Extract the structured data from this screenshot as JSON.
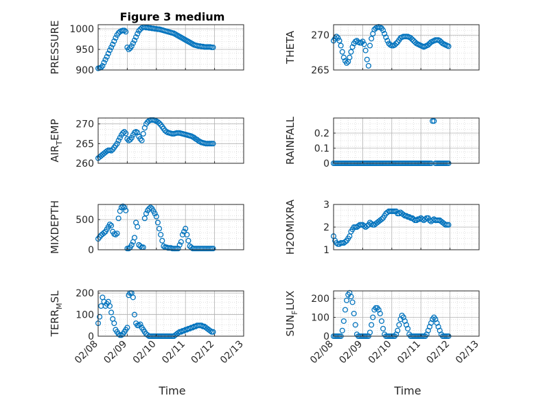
{
  "title": "Figure 3 medium",
  "colors": {
    "marker": "#0072BD",
    "axis": "#262626",
    "grid": "#b0b0b0",
    "minor_grid": "#d6d6d6"
  },
  "x_ticks": [
    "02/08",
    "02/09",
    "02/10",
    "02/11",
    "02/12",
    "02/13"
  ],
  "x_label": "Time",
  "chart_data": [
    {
      "type": "scatter",
      "ylabel": "PRESSURE",
      "ylim": [
        900,
        1010
      ],
      "yticks": [
        900,
        950,
        1000
      ],
      "xlim": [
        0,
        5
      ],
      "show_xticks": false,
      "x": [
        0.0,
        0.05,
        0.1,
        0.15,
        0.2,
        0.25,
        0.3,
        0.35,
        0.4,
        0.45,
        0.5,
        0.55,
        0.6,
        0.65,
        0.7,
        0.75,
        0.8,
        0.85,
        0.9,
        0.95,
        1.0,
        1.05,
        1.1,
        1.15,
        1.2,
        1.25,
        1.3,
        1.35,
        1.4,
        1.45,
        1.5,
        1.55,
        1.6,
        1.65,
        1.7,
        1.75,
        1.8,
        1.85,
        1.9,
        1.95,
        2.0,
        2.05,
        2.1,
        2.15,
        2.2,
        2.25,
        2.3,
        2.35,
        2.4,
        2.45,
        2.5,
        2.55,
        2.6,
        2.65,
        2.7,
        2.75,
        2.8,
        2.85,
        2.9,
        2.95,
        3.0,
        3.05,
        3.1,
        3.15,
        3.2,
        3.25,
        3.3,
        3.35,
        3.4,
        3.45,
        3.5,
        3.55,
        3.6,
        3.65,
        3.7,
        3.75,
        3.8,
        3.85,
        3.9,
        3.95
      ],
      "y": [
        904,
        905,
        906,
        910,
        918,
        925,
        932,
        940,
        948,
        955,
        962,
        970,
        978,
        985,
        990,
        993,
        995,
        996,
        996,
        993,
        955,
        950,
        953,
        958,
        965,
        972,
        980,
        988,
        995,
        999,
        1002,
        1004,
        1004,
        1003,
        1003,
        1002,
        1002,
        1001,
        1001,
        1000,
        1000,
        999,
        999,
        998,
        997,
        996,
        995,
        994,
        993,
        992,
        991,
        990,
        989,
        987,
        985,
        983,
        981,
        979,
        977,
        975,
        973,
        971,
        969,
        967,
        965,
        963,
        961,
        960,
        959,
        958,
        958,
        957,
        957,
        956,
        956,
        956,
        956,
        956,
        955,
        955
      ]
    },
    {
      "type": "scatter",
      "ylabel": "THETA",
      "ylim": [
        265,
        271.5
      ],
      "yticks": [
        265,
        270
      ],
      "xlim": [
        0,
        5
      ],
      "show_xticks": false,
      "x": [
        0.0,
        0.05,
        0.1,
        0.15,
        0.2,
        0.25,
        0.3,
        0.35,
        0.4,
        0.45,
        0.5,
        0.55,
        0.6,
        0.65,
        0.7,
        0.75,
        0.8,
        0.85,
        0.9,
        0.95,
        1.0,
        1.05,
        1.1,
        1.15,
        1.2,
        1.25,
        1.3,
        1.35,
        1.4,
        1.45,
        1.5,
        1.55,
        1.6,
        1.65,
        1.7,
        1.75,
        1.8,
        1.85,
        1.9,
        1.95,
        2.0,
        2.05,
        2.1,
        2.15,
        2.2,
        2.25,
        2.3,
        2.35,
        2.4,
        2.45,
        2.5,
        2.55,
        2.6,
        2.65,
        2.7,
        2.75,
        2.8,
        2.85,
        2.9,
        2.95,
        3.0,
        3.05,
        3.1,
        3.15,
        3.2,
        3.25,
        3.3,
        3.35,
        3.4,
        3.45,
        3.5,
        3.55,
        3.6,
        3.65,
        3.7,
        3.75,
        3.8,
        3.85,
        3.9,
        3.95
      ],
      "y": [
        269.2,
        269.5,
        269.8,
        269.6,
        269.2,
        268.5,
        267.6,
        266.8,
        266.3,
        266.0,
        266.2,
        266.8,
        267.6,
        268.3,
        268.8,
        269.1,
        269.2,
        269.0,
        268.9,
        268.9,
        269.1,
        268.7,
        267.8,
        266.5,
        265.6,
        268.5,
        269.5,
        270.2,
        270.8,
        271.0,
        271.1,
        271.2,
        271.1,
        271.0,
        270.7,
        270.2,
        269.7,
        269.2,
        268.8,
        268.6,
        268.5,
        268.5,
        268.6,
        268.8,
        269.0,
        269.3,
        269.6,
        269.7,
        269.8,
        269.8,
        269.8,
        269.8,
        269.7,
        269.6,
        269.4,
        269.2,
        269.0,
        268.8,
        268.7,
        268.6,
        268.5,
        268.4,
        268.3,
        268.4,
        268.5,
        268.6,
        268.8,
        269.0,
        269.1,
        269.2,
        269.3,
        269.3,
        269.3,
        269.2,
        269.0,
        268.8,
        268.7,
        268.6,
        268.5,
        268.4
      ]
    },
    {
      "type": "scatter",
      "ylabel": "AIR_TEMP",
      "ylim": [
        260,
        271.5
      ],
      "yticks": [
        260,
        265,
        270
      ],
      "xlim": [
        0,
        5
      ],
      "show_xticks": false,
      "x": [
        0.0,
        0.05,
        0.1,
        0.15,
        0.2,
        0.25,
        0.3,
        0.35,
        0.4,
        0.45,
        0.5,
        0.55,
        0.6,
        0.65,
        0.7,
        0.75,
        0.8,
        0.85,
        0.9,
        0.95,
        1.0,
        1.05,
        1.1,
        1.15,
        1.2,
        1.25,
        1.3,
        1.35,
        1.4,
        1.45,
        1.5,
        1.55,
        1.6,
        1.65,
        1.7,
        1.75,
        1.8,
        1.85,
        1.9,
        1.95,
        2.0,
        2.05,
        2.1,
        2.15,
        2.2,
        2.25,
        2.3,
        2.35,
        2.4,
        2.45,
        2.5,
        2.55,
        2.6,
        2.65,
        2.7,
        2.75,
        2.8,
        2.85,
        2.9,
        2.95,
        3.0,
        3.05,
        3.1,
        3.15,
        3.2,
        3.25,
        3.3,
        3.35,
        3.4,
        3.45,
        3.5,
        3.55,
        3.6,
        3.65,
        3.7,
        3.75,
        3.8,
        3.85,
        3.9,
        3.95
      ],
      "y": [
        261.3,
        261.6,
        261.9,
        262.2,
        262.5,
        262.8,
        263.1,
        263.3,
        263.3,
        263.2,
        263.5,
        264.0,
        264.5,
        265.0,
        265.8,
        266.5,
        267.2,
        267.7,
        268.0,
        267.6,
        266.2,
        265.8,
        266.0,
        266.5,
        267.2,
        267.8,
        268.0,
        267.8,
        266.8,
        266.2,
        265.8,
        267.5,
        269.0,
        270.0,
        270.5,
        270.8,
        271.0,
        271.0,
        271.0,
        270.9,
        270.7,
        270.5,
        270.2,
        269.8,
        269.3,
        268.8,
        268.3,
        268.0,
        267.8,
        267.7,
        267.6,
        267.5,
        267.5,
        267.6,
        267.7,
        267.7,
        267.7,
        267.6,
        267.5,
        267.4,
        267.3,
        267.2,
        267.1,
        267.0,
        266.9,
        266.7,
        266.5,
        266.2,
        266.0,
        265.7,
        265.5,
        265.3,
        265.2,
        265.1,
        265.0,
        265.0,
        265.0,
        265.0,
        265.0,
        265.0
      ]
    },
    {
      "type": "scatter",
      "ylabel": "RAINFALL",
      "ylim": [
        0,
        0.3
      ],
      "yticks": [
        0,
        0.1,
        0.2
      ],
      "xlim": [
        0,
        5
      ],
      "show_xticks": false,
      "x": [
        0.0,
        0.05,
        0.1,
        0.15,
        0.2,
        0.25,
        0.3,
        0.35,
        0.4,
        0.45,
        0.5,
        0.55,
        0.6,
        0.65,
        0.7,
        0.75,
        0.8,
        0.85,
        0.9,
        0.95,
        1.0,
        1.05,
        1.1,
        1.15,
        1.2,
        1.25,
        1.3,
        1.35,
        1.4,
        1.45,
        1.5,
        1.55,
        1.6,
        1.65,
        1.7,
        1.75,
        1.8,
        1.85,
        1.9,
        1.95,
        2.0,
        2.05,
        2.1,
        2.15,
        2.2,
        2.25,
        2.3,
        2.35,
        2.4,
        2.45,
        2.5,
        2.55,
        2.6,
        2.65,
        2.7,
        2.75,
        2.8,
        2.85,
        2.9,
        2.95,
        3.0,
        3.05,
        3.1,
        3.15,
        3.2,
        3.25,
        3.3,
        3.35,
        3.4,
        3.45,
        3.5,
        3.55,
        3.6,
        3.65,
        3.7,
        3.75,
        3.8,
        3.85,
        3.9,
        3.95
      ],
      "y": [
        0,
        0,
        0,
        0,
        0,
        0,
        0,
        0,
        0,
        0,
        0,
        0,
        0,
        0,
        0,
        0,
        0,
        0,
        0,
        0,
        0,
        0,
        0,
        0,
        0,
        0,
        0,
        0,
        0,
        0,
        0,
        0,
        0,
        0,
        0,
        0,
        0,
        0,
        0,
        0,
        0,
        0,
        0,
        0,
        0,
        0,
        0,
        0,
        0,
        0,
        0,
        0,
        0,
        0,
        0,
        0,
        0,
        0,
        0,
        0,
        0,
        0,
        0,
        0,
        0,
        0,
        0,
        0,
        0.28,
        0.28,
        0,
        0,
        0,
        0,
        0,
        0,
        0,
        0,
        0,
        0
      ]
    },
    {
      "type": "scatter",
      "ylabel": "MIXDEPTH",
      "ylim": [
        0,
        750
      ],
      "yticks": [
        0,
        500
      ],
      "xlim": [
        0,
        5
      ],
      "show_xticks": false,
      "x": [
        0.0,
        0.05,
        0.1,
        0.15,
        0.2,
        0.25,
        0.3,
        0.35,
        0.4,
        0.45,
        0.5,
        0.55,
        0.6,
        0.65,
        0.7,
        0.75,
        0.8,
        0.85,
        0.9,
        0.95,
        1.0,
        1.05,
        1.1,
        1.15,
        1.2,
        1.25,
        1.3,
        1.35,
        1.4,
        1.45,
        1.5,
        1.55,
        1.6,
        1.65,
        1.7,
        1.75,
        1.8,
        1.85,
        1.9,
        1.95,
        2.0,
        2.05,
        2.1,
        2.15,
        2.2,
        2.25,
        2.3,
        2.35,
        2.4,
        2.45,
        2.5,
        2.55,
        2.6,
        2.65,
        2.7,
        2.75,
        2.8,
        2.85,
        2.9,
        2.95,
        3.0,
        3.05,
        3.1,
        3.15,
        3.2,
        3.25,
        3.3,
        3.35,
        3.4,
        3.45,
        3.5,
        3.55,
        3.6,
        3.65,
        3.7,
        3.75,
        3.8,
        3.85,
        3.9,
        3.95
      ],
      "y": [
        180,
        210,
        240,
        260,
        280,
        300,
        340,
        380,
        420,
        400,
        300,
        260,
        250,
        270,
        520,
        640,
        700,
        720,
        700,
        650,
        20,
        20,
        40,
        80,
        130,
        200,
        450,
        380,
        80,
        60,
        40,
        40,
        520,
        600,
        650,
        680,
        700,
        680,
        640,
        600,
        550,
        450,
        350,
        250,
        150,
        60,
        40,
        40,
        30,
        30,
        30,
        20,
        20,
        20,
        20,
        20,
        80,
        130,
        250,
        300,
        350,
        250,
        150,
        60,
        40,
        20,
        20,
        20,
        20,
        20,
        20,
        20,
        20,
        20,
        20,
        20,
        20,
        20,
        20,
        20
      ]
    },
    {
      "type": "scatter",
      "ylabel": "H2OMIXRA",
      "ylim": [
        1,
        3
      ],
      "yticks": [
        1,
        2,
        3
      ],
      "xlim": [
        0,
        5
      ],
      "show_xticks": false,
      "x": [
        0.0,
        0.05,
        0.1,
        0.15,
        0.2,
        0.25,
        0.3,
        0.35,
        0.4,
        0.45,
        0.5,
        0.55,
        0.6,
        0.65,
        0.7,
        0.75,
        0.8,
        0.85,
        0.9,
        0.95,
        1.0,
        1.05,
        1.1,
        1.15,
        1.2,
        1.25,
        1.3,
        1.35,
        1.4,
        1.45,
        1.5,
        1.55,
        1.6,
        1.65,
        1.7,
        1.75,
        1.8,
        1.85,
        1.9,
        1.95,
        2.0,
        2.05,
        2.1,
        2.15,
        2.2,
        2.25,
        2.3,
        2.35,
        2.4,
        2.45,
        2.5,
        2.55,
        2.6,
        2.65,
        2.7,
        2.75,
        2.8,
        2.85,
        2.9,
        2.95,
        3.0,
        3.05,
        3.1,
        3.15,
        3.2,
        3.25,
        3.3,
        3.35,
        3.4,
        3.45,
        3.5,
        3.55,
        3.6,
        3.65,
        3.7,
        3.75,
        3.8,
        3.85,
        3.9,
        3.95
      ],
      "y": [
        1.6,
        1.4,
        1.3,
        1.25,
        1.25,
        1.3,
        1.3,
        1.3,
        1.35,
        1.4,
        1.5,
        1.6,
        1.8,
        1.9,
        2.0,
        2.0,
        2.0,
        2.05,
        2.1,
        2.1,
        2.1,
        2.05,
        2.0,
        2.05,
        2.1,
        2.2,
        2.15,
        2.1,
        2.1,
        2.15,
        2.2,
        2.25,
        2.3,
        2.35,
        2.4,
        2.5,
        2.6,
        2.65,
        2.7,
        2.7,
        2.7,
        2.7,
        2.7,
        2.7,
        2.6,
        2.6,
        2.65,
        2.6,
        2.55,
        2.5,
        2.5,
        2.45,
        2.45,
        2.4,
        2.4,
        2.35,
        2.3,
        2.3,
        2.35,
        2.35,
        2.4,
        2.35,
        2.3,
        2.35,
        2.4,
        2.4,
        2.3,
        2.25,
        2.3,
        2.35,
        2.3,
        2.3,
        2.3,
        2.3,
        2.25,
        2.2,
        2.15,
        2.1,
        2.1,
        2.1
      ]
    },
    {
      "type": "scatter",
      "ylabel": "TERR_MSL",
      "ylim": [
        0,
        210
      ],
      "yticks": [
        0,
        100,
        200
      ],
      "xlim": [
        0,
        5
      ],
      "show_xticks": true,
      "x": [
        0.0,
        0.05,
        0.1,
        0.15,
        0.2,
        0.25,
        0.3,
        0.35,
        0.4,
        0.45,
        0.5,
        0.55,
        0.6,
        0.65,
        0.7,
        0.75,
        0.8,
        0.85,
        0.9,
        0.95,
        1.0,
        1.05,
        1.1,
        1.15,
        1.2,
        1.25,
        1.3,
        1.35,
        1.4,
        1.45,
        1.5,
        1.55,
        1.6,
        1.65,
        1.7,
        1.75,
        1.8,
        1.85,
        1.9,
        1.95,
        2.0,
        2.05,
        2.1,
        2.15,
        2.2,
        2.25,
        2.3,
        2.35,
        2.4,
        2.45,
        2.5,
        2.55,
        2.6,
        2.65,
        2.7,
        2.75,
        2.8,
        2.85,
        2.9,
        2.95,
        3.0,
        3.05,
        3.1,
        3.15,
        3.2,
        3.25,
        3.3,
        3.35,
        3.4,
        3.45,
        3.5,
        3.55,
        3.6,
        3.65,
        3.7,
        3.75,
        3.8,
        3.85,
        3.9,
        3.95
      ],
      "y": [
        60,
        90,
        140,
        180,
        160,
        140,
        150,
        160,
        140,
        110,
        80,
        60,
        30,
        20,
        10,
        5,
        5,
        10,
        20,
        30,
        40,
        190,
        200,
        200,
        180,
        100,
        60,
        50,
        50,
        55,
        40,
        30,
        20,
        10,
        5,
        0,
        0,
        0,
        0,
        0,
        0,
        0,
        0,
        0,
        0,
        0,
        0,
        0,
        0,
        0,
        0,
        0,
        0,
        5,
        10,
        15,
        20,
        20,
        25,
        25,
        30,
        30,
        35,
        35,
        40,
        40,
        45,
        45,
        50,
        50,
        50,
        50,
        45,
        45,
        40,
        35,
        30,
        25,
        20,
        20
      ]
    },
    {
      "type": "scatter",
      "ylabel": "SUN_FLUX",
      "ylim": [
        0,
        240
      ],
      "yticks": [
        0,
        100,
        200
      ],
      "xlim": [
        0,
        5
      ],
      "show_xticks": true,
      "x": [
        0.0,
        0.05,
        0.1,
        0.15,
        0.2,
        0.25,
        0.3,
        0.35,
        0.4,
        0.45,
        0.5,
        0.55,
        0.6,
        0.65,
        0.7,
        0.75,
        0.8,
        0.85,
        0.9,
        0.95,
        1.0,
        1.05,
        1.1,
        1.15,
        1.2,
        1.25,
        1.3,
        1.35,
        1.4,
        1.45,
        1.5,
        1.55,
        1.6,
        1.65,
        1.7,
        1.75,
        1.8,
        1.85,
        1.9,
        1.95,
        2.0,
        2.05,
        2.1,
        2.15,
        2.2,
        2.25,
        2.3,
        2.35,
        2.4,
        2.45,
        2.5,
        2.55,
        2.6,
        2.65,
        2.7,
        2.75,
        2.8,
        2.85,
        2.9,
        2.95,
        3.0,
        3.05,
        3.1,
        3.15,
        3.2,
        3.25,
        3.3,
        3.35,
        3.4,
        3.45,
        3.5,
        3.55,
        3.6,
        3.65,
        3.7,
        3.75,
        3.8,
        3.85,
        3.9,
        3.95
      ],
      "y": [
        0,
        0,
        0,
        0,
        0,
        0,
        30,
        80,
        140,
        190,
        220,
        230,
        210,
        180,
        120,
        60,
        10,
        0,
        0,
        0,
        0,
        0,
        0,
        0,
        0,
        20,
        60,
        100,
        140,
        150,
        150,
        140,
        120,
        80,
        40,
        10,
        0,
        0,
        0,
        0,
        0,
        0,
        0,
        10,
        30,
        60,
        90,
        110,
        100,
        80,
        60,
        40,
        10,
        0,
        0,
        0,
        0,
        0,
        0,
        0,
        0,
        0,
        0,
        0,
        10,
        30,
        50,
        70,
        90,
        100,
        90,
        70,
        50,
        30,
        10,
        0,
        0,
        0,
        0,
        0
      ]
    }
  ]
}
